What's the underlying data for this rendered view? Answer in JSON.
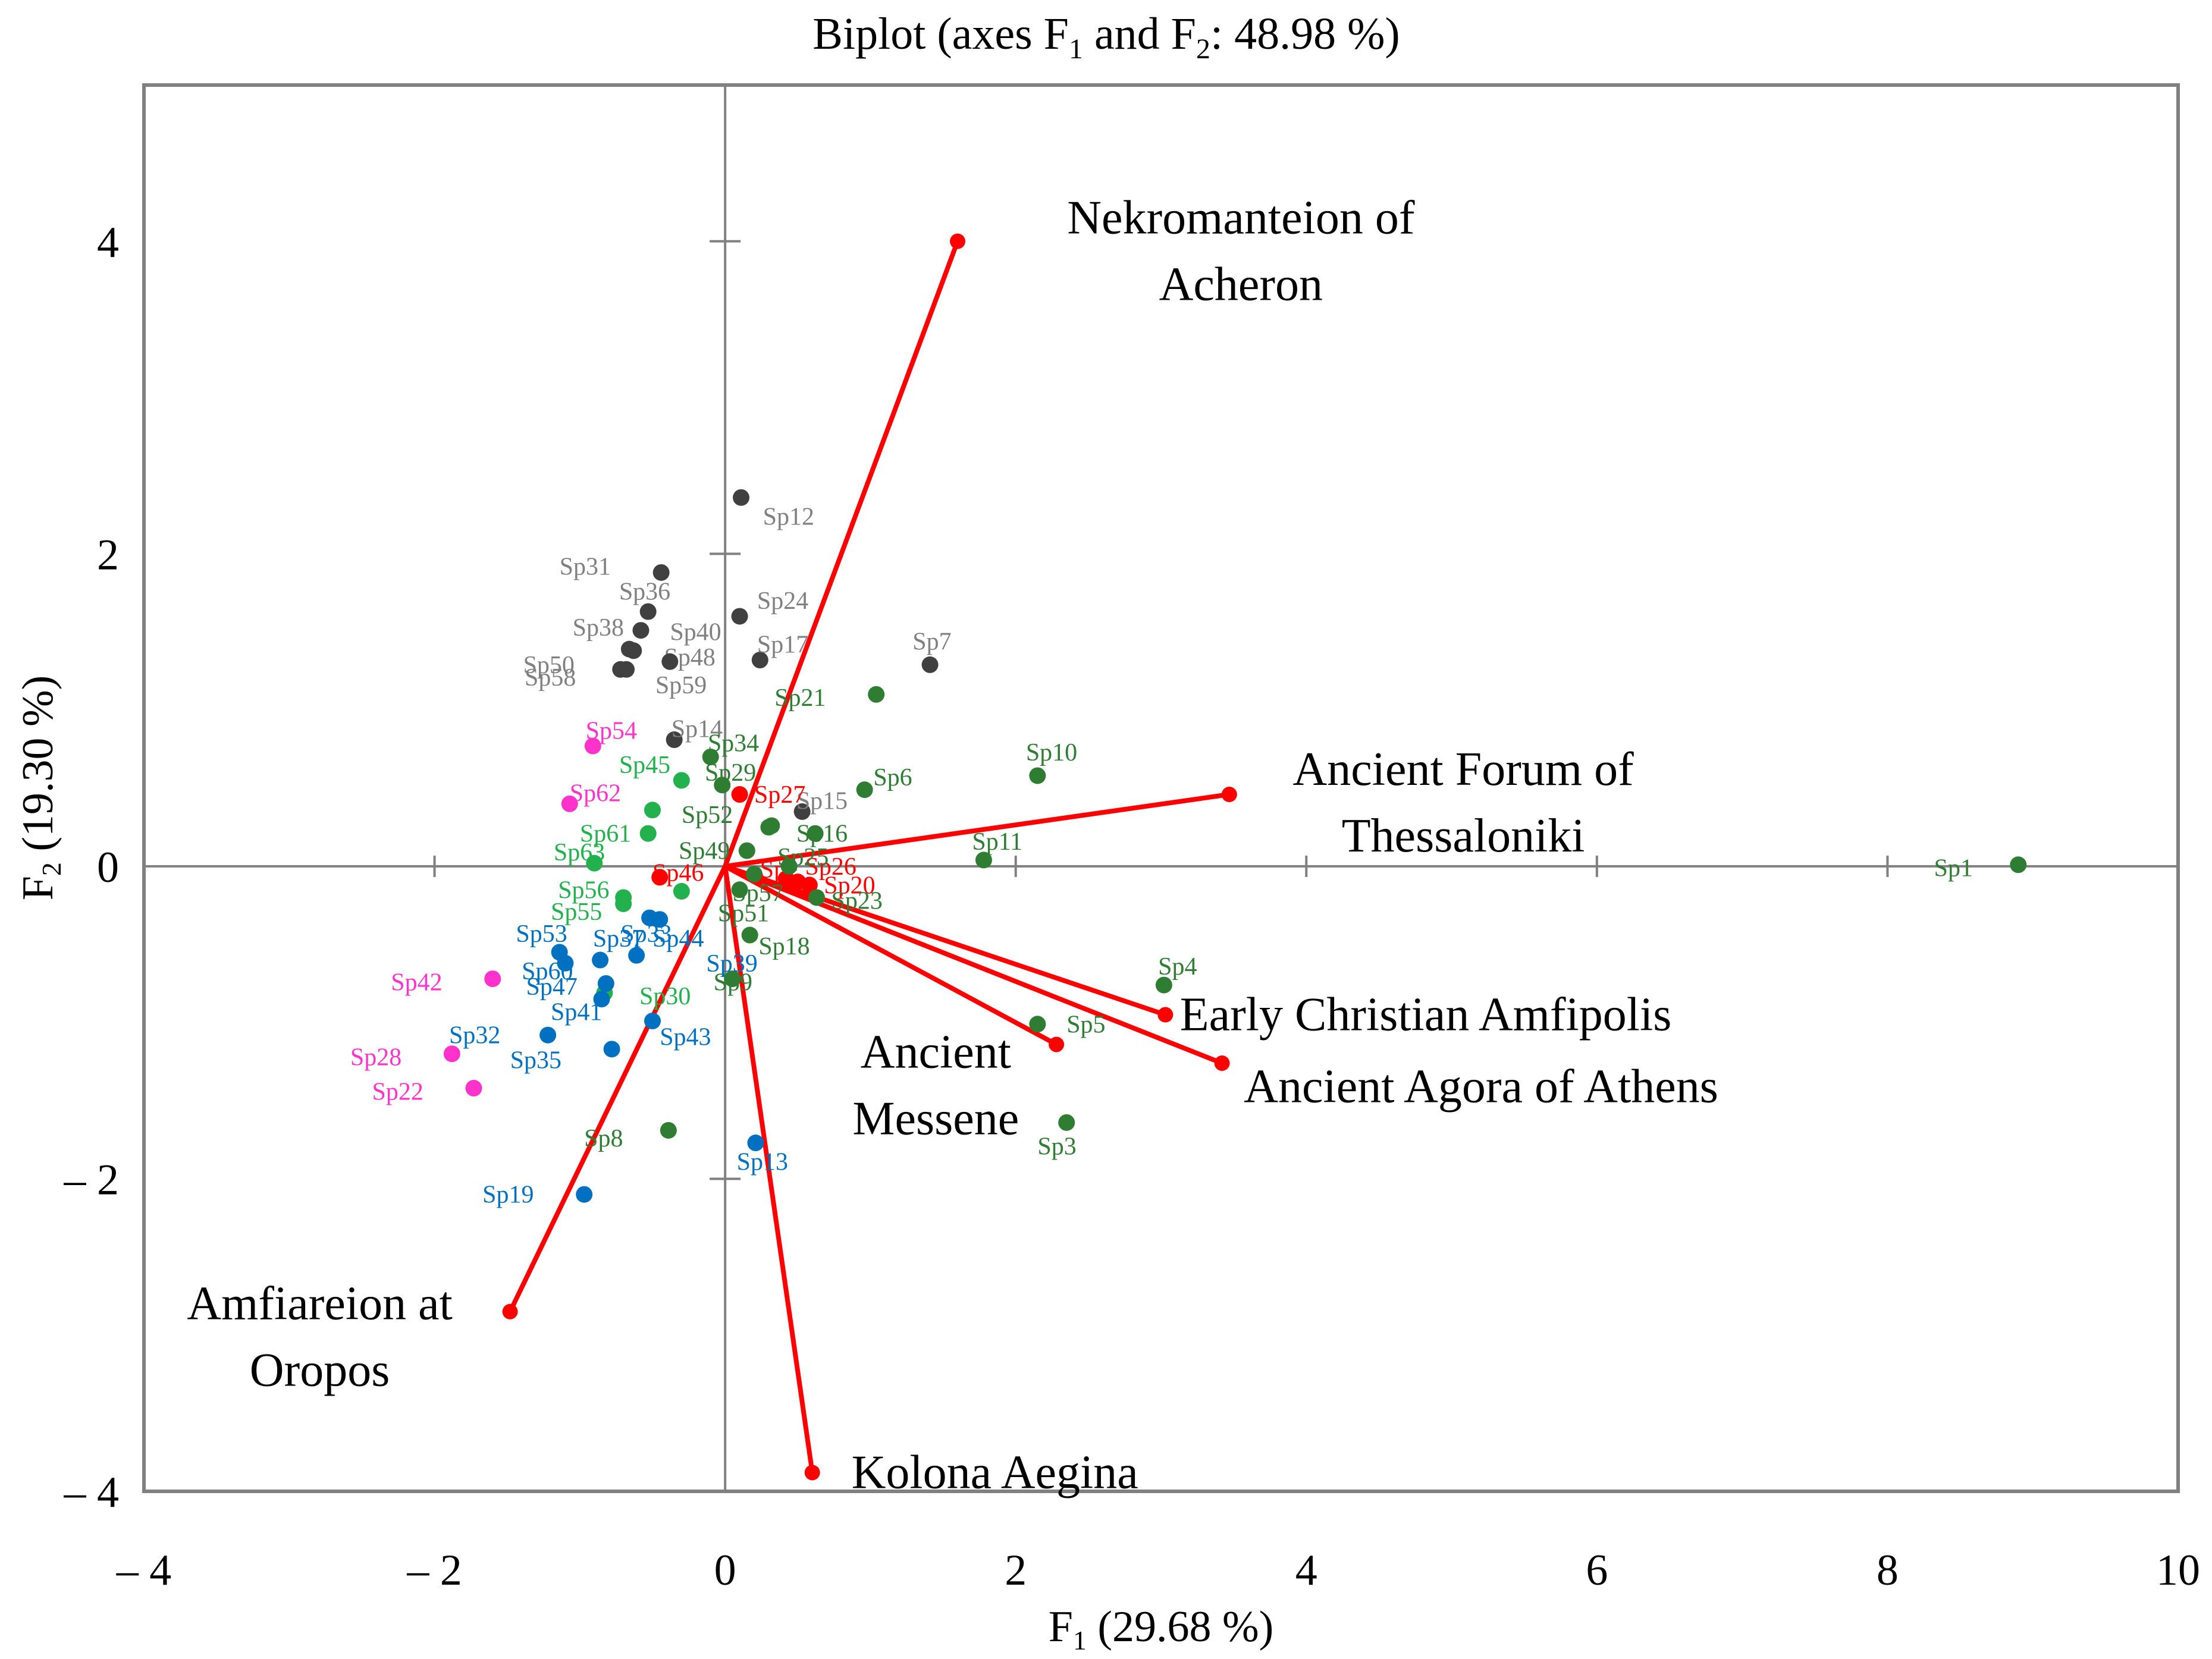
{
  "chart_data": {
    "type": "scatter",
    "title": {
      "pre": "Biplot (axes F",
      "s1": "1",
      "mid": " and F",
      "s2": "2",
      "post": ": 48.98 %)"
    },
    "xlabel": {
      "main": "F",
      "sub": "1",
      "rest": " (29.68 %)"
    },
    "ylabel": {
      "main": "F",
      "sub": "2",
      "rest": " (19.30 %)"
    },
    "xlim": [
      -4,
      10
    ],
    "ylim": [
      -4,
      5
    ],
    "xticks": [
      {
        "v": -4,
        "label": "– 4"
      },
      {
        "v": -2,
        "label": "– 2"
      },
      {
        "v": 0,
        "label": "0"
      },
      {
        "v": 2,
        "label": "2"
      },
      {
        "v": 4,
        "label": "4"
      },
      {
        "v": 6,
        "label": "6"
      },
      {
        "v": 8,
        "label": "8"
      },
      {
        "v": 10,
        "label": "10"
      }
    ],
    "yticks": [
      {
        "v": -4,
        "label": "– 4"
      },
      {
        "v": -2,
        "label": "– 2"
      },
      {
        "v": 0,
        "label": "0"
      },
      {
        "v": 2,
        "label": "2"
      },
      {
        "v": 4,
        "label": "4"
      }
    ],
    "colors": {
      "gray_point": "#404040",
      "gray_label": "#808080",
      "green_point": "#2e7d32",
      "green_label": "#2e7d32",
      "light_green_point": "#22b14c",
      "light_green_label": "#22b14c",
      "magenta": "#ff33cc",
      "blue": "#0070c0",
      "red": "#ff0000"
    },
    "points": [
      {
        "label": "Sp1",
        "x": 8.9,
        "y": 0.01,
        "group": "green_point",
        "lc": "green_label",
        "dx": -0.58,
        "dy": -0.02
      },
      {
        "label": "Sp3",
        "x": 2.35,
        "y": -1.64,
        "group": "green_point",
        "lc": "green_label",
        "dx": -0.2,
        "dy": -0.15
      },
      {
        "label": "Sp4",
        "x": 3.02,
        "y": -0.76,
        "group": "green_point",
        "lc": "green_label",
        "dx": -0.04,
        "dy": 0.12
      },
      {
        "label": "Sp5",
        "x": 2.15,
        "y": -1.01,
        "group": "green_point",
        "lc": "green_label",
        "dx": 0.2,
        "dy": 0.0
      },
      {
        "label": "Sp6",
        "x": 0.96,
        "y": 0.49,
        "group": "green_point",
        "lc": "green_label",
        "dx": 0.06,
        "dy": 0.08
      },
      {
        "label": "Sp7",
        "x": 1.41,
        "y": 1.29,
        "group": "gray_point",
        "lc": "gray_label",
        "dx": -0.12,
        "dy": 0.15
      },
      {
        "label": "Sp8",
        "x": -0.39,
        "y": -1.69,
        "group": "green_point",
        "lc": "green_label",
        "dx": -0.58,
        "dy": -0.05
      },
      {
        "label": "Sp9",
        "x": 0.05,
        "y": -0.72,
        "group": "green_point",
        "lc": "green_label",
        "dx": -0.13,
        "dy": -0.02
      },
      {
        "label": "Sp10",
        "x": 2.15,
        "y": 0.58,
        "group": "green_point",
        "lc": "green_label",
        "dx": -0.08,
        "dy": 0.15
      },
      {
        "label": "Sp11",
        "x": 1.78,
        "y": 0.04,
        "group": "green_point",
        "lc": "green_label",
        "dx": -0.08,
        "dy": 0.12
      },
      {
        "label": "Sp12",
        "x": 0.11,
        "y": 2.36,
        "group": "gray_point",
        "lc": "gray_label",
        "dx": 0.15,
        "dy": -0.12
      },
      {
        "label": "Sp13",
        "x": 0.21,
        "y": -1.77,
        "group": "blue",
        "lc": "blue",
        "dx": -0.13,
        "dy": -0.12
      },
      {
        "label": "Sp14",
        "x": -0.35,
        "y": 0.81,
        "group": "gray_point",
        "lc": "gray_label",
        "dx": -0.02,
        "dy": 0.07
      },
      {
        "label": "Sp15",
        "x": 0.53,
        "y": 0.35,
        "group": "gray_point",
        "lc": "gray_label",
        "dx": -0.04,
        "dy": 0.07
      },
      {
        "label": "Sp16",
        "x": 0.62,
        "y": 0.21,
        "group": "green_point",
        "lc": "green_label",
        "dx": -0.13,
        "dy": 0.0
      },
      {
        "label": "Sp17",
        "x": 0.24,
        "y": 1.32,
        "group": "gray_point",
        "lc": "gray_label",
        "dx": -0.02,
        "dy": 0.1
      },
      {
        "label": "Sp18",
        "x": 0.17,
        "y": -0.44,
        "group": "green_point",
        "lc": "green_label",
        "dx": 0.06,
        "dy": -0.07
      },
      {
        "label": "Sp19",
        "x": -0.97,
        "y": -2.1,
        "group": "blue",
        "lc": "blue",
        "dx": -0.7,
        "dy": 0.0
      },
      {
        "label": "Sp20",
        "x": 0.58,
        "y": -0.12,
        "group": "red",
        "lc": "red",
        "dx": 0.1,
        "dy": 0.0
      },
      {
        "label": "Sp21",
        "x": 1.04,
        "y": 1.1,
        "group": "green_point",
        "lc": "green_label",
        "dx": -0.7,
        "dy": -0.02
      },
      {
        "label": "Sp22",
        "x": -1.73,
        "y": -1.42,
        "group": "magenta",
        "lc": "magenta",
        "dx": -0.7,
        "dy": -0.02
      },
      {
        "label": "Sp23",
        "x": 0.63,
        "y": -0.2,
        "group": "green_point",
        "lc": "green_label",
        "dx": 0.1,
        "dy": -0.02
      },
      {
        "label": "Sp24",
        "x": 0.1,
        "y": 1.6,
        "group": "gray_point",
        "lc": "gray_label",
        "dx": 0.12,
        "dy": 0.1
      },
      {
        "label": "Sp26",
        "x": 0.5,
        "y": -0.1,
        "group": "red",
        "lc": "red",
        "dx": 0.05,
        "dy": 0.1
      },
      {
        "label": "Sp27",
        "x": 0.1,
        "y": 0.46,
        "group": "red",
        "lc": "red",
        "dx": 0.1,
        "dy": 0.0
      },
      {
        "label": "Sp28",
        "x": -1.88,
        "y": -1.2,
        "group": "magenta",
        "lc": "magenta",
        "dx": -0.7,
        "dy": -0.02
      },
      {
        "label": "Sp29",
        "x": -0.02,
        "y": 0.52,
        "group": "green_point",
        "lc": "green_label",
        "dx": -0.12,
        "dy": 0.08
      },
      {
        "label": "Sp30",
        "x": -0.83,
        "y": -0.81,
        "group": "light_green_point",
        "lc": "light_green_label",
        "dx": 0.24,
        "dy": -0.02
      },
      {
        "label": "Sp31",
        "x": -0.44,
        "y": 1.88,
        "group": "gray_point",
        "lc": "gray_label",
        "dx": -0.7,
        "dy": 0.04
      },
      {
        "label": "Sp32",
        "x": -1.22,
        "y": -1.08,
        "group": "blue",
        "lc": "blue",
        "dx": -0.68,
        "dy": 0.0
      },
      {
        "label": "Sp34",
        "x": -0.1,
        "y": 0.7,
        "group": "green_point",
        "lc": "green_label",
        "dx": -0.02,
        "dy": 0.09
      },
      {
        "label": "Sp35",
        "x": -0.78,
        "y": -1.17,
        "group": "blue",
        "lc": "blue",
        "dx": -0.7,
        "dy": -0.07
      },
      {
        "label": "Sp36",
        "x": -0.53,
        "y": 1.63,
        "group": "gray_point",
        "lc": "gray_label",
        "dx": -0.2,
        "dy": 0.13
      },
      {
        "label": "Sp37",
        "x": -0.86,
        "y": -0.6,
        "group": "blue",
        "lc": "blue",
        "dx": -0.05,
        "dy": 0.14
      },
      {
        "label": "Sp38",
        "x": -0.58,
        "y": 1.51,
        "group": "gray_point",
        "lc": "gray_label",
        "dx": -0.47,
        "dy": 0.02
      },
      {
        "label": "Sp39",
        "x": -0.61,
        "y": -0.57,
        "group": "blue",
        "lc": "blue",
        "dx": 0.48,
        "dy": -0.05
      },
      {
        "label": "Sp40",
        "x": -0.63,
        "y": 1.38,
        "group": "gray_point",
        "lc": "gray_label",
        "dx": 0.25,
        "dy": 0.12
      },
      {
        "label": "Sp41",
        "x": -0.85,
        "y": -0.85,
        "group": "blue",
        "lc": "blue",
        "dx": -0.35,
        "dy": -0.08
      },
      {
        "label": "Sp42",
        "x": -1.6,
        "y": -0.72,
        "group": "magenta",
        "lc": "magenta",
        "dx": -0.7,
        "dy": -0.02
      },
      {
        "label": "Sp43",
        "x": -0.5,
        "y": -0.99,
        "group": "blue",
        "lc": "blue",
        "dx": 0.05,
        "dy": -0.1
      },
      {
        "label": "Sp44",
        "x": -0.45,
        "y": -0.34,
        "group": "blue",
        "lc": "blue",
        "dx": -0.05,
        "dy": -0.12
      },
      {
        "label": "Sp45",
        "x": -0.3,
        "y": 0.55,
        "group": "light_green_point",
        "lc": "light_green_label",
        "dx": -0.43,
        "dy": 0.1
      },
      {
        "label": "Sp46",
        "x": -0.45,
        "y": -0.07,
        "group": "red",
        "lc": "red",
        "dx": -0.05,
        "dy": 0.03
      },
      {
        "label": "Sp47",
        "x": -0.82,
        "y": -0.75,
        "group": "blue",
        "lc": "blue",
        "dx": -0.55,
        "dy": -0.02
      },
      {
        "label": "Sp48",
        "x": -0.72,
        "y": 1.26,
        "group": "gray_point",
        "lc": "gray_label",
        "dx": 0.3,
        "dy": 0.08
      },
      {
        "label": "Sp49",
        "x": 0.15,
        "y": 0.1,
        "group": "green_point",
        "lc": "green_label",
        "dx": -0.47,
        "dy": 0.0
      },
      {
        "label": "Sp50",
        "x": -0.66,
        "y": 1.39,
        "group": "gray_point",
        "lc": "gray_label",
        "dx": -0.73,
        "dy": -0.1
      },
      {
        "label": "Sp51",
        "x": 0.1,
        "y": -0.15,
        "group": "green_point",
        "lc": "green_label",
        "dx": -0.15,
        "dy": -0.15
      },
      {
        "label": "Sp52",
        "x": 0.3,
        "y": 0.25,
        "group": "green_point",
        "lc": "green_label",
        "dx": -0.6,
        "dy": 0.08
      },
      {
        "label": "Sp53",
        "x": -1.14,
        "y": -0.55,
        "group": "blue",
        "lc": "blue",
        "dx": -0.3,
        "dy": 0.12
      },
      {
        "label": "Sp54",
        "x": -0.91,
        "y": 0.77,
        "group": "magenta",
        "lc": "magenta",
        "dx": -0.05,
        "dy": 0.1
      },
      {
        "label": "Sp55",
        "x": -0.7,
        "y": -0.24,
        "group": "light_green_point",
        "lc": "light_green_label",
        "dx": -0.5,
        "dy": -0.05
      },
      {
        "label": "Sp56",
        "x": -0.7,
        "y": -0.2,
        "group": "light_green_point",
        "lc": "light_green_label",
        "dx": -0.45,
        "dy": 0.05
      },
      {
        "label": "Sp57",
        "x": 0.2,
        "y": -0.05,
        "group": "green_point",
        "lc": "green_label",
        "dx": -0.15,
        "dy": -0.12
      },
      {
        "label": "Sp58",
        "x": -0.68,
        "y": 1.26,
        "group": "gray_point",
        "lc": "gray_label",
        "dx": -0.7,
        "dy": -0.05
      },
      {
        "label": "Sp59",
        "x": -0.38,
        "y": 1.31,
        "group": "gray_point",
        "lc": "gray_label",
        "dx": -0.1,
        "dy": -0.15
      },
      {
        "label": "Sp60",
        "x": -1.1,
        "y": -0.62,
        "group": "blue",
        "lc": "blue",
        "dx": -0.3,
        "dy": -0.05
      },
      {
        "label": "Sp61",
        "x": -0.53,
        "y": 0.21,
        "group": "light_green_point",
        "lc": "light_green_label",
        "dx": -0.47,
        "dy": 0.0
      },
      {
        "label": "Sp62",
        "x": -1.07,
        "y": 0.4,
        "group": "magenta",
        "lc": "magenta",
        "dx": 0.0,
        "dy": 0.07
      },
      {
        "label": "Sp63",
        "x": -0.9,
        "y": 0.02,
        "group": "light_green_point",
        "lc": "light_green_label",
        "dx": -0.28,
        "dy": 0.07
      },
      {
        "label": "Sp2",
        "x": 0.42,
        "y": -0.08,
        "group": "red",
        "lc": "red",
        "dx": -0.18,
        "dy": 0.06
      },
      {
        "label": "Sp25",
        "x": 0.44,
        "y": 0.0,
        "group": "green_point",
        "lc": "green_label",
        "dx": -0.08,
        "dy": 0.06
      },
      {
        "label": "Sp33",
        "x": -0.52,
        "y": -0.33,
        "group": "blue",
        "lc": "blue",
        "dx": -0.2,
        "dy": -0.1
      },
      {
        "label": "Sp44b",
        "x": -0.3,
        "y": -0.16,
        "group": "light_green_point",
        "lc": "light_green_label",
        "dx": 0.0,
        "dy": 0.0,
        "hide_label": true
      },
      {
        "label": "Sp45b",
        "x": -0.5,
        "y": 0.36,
        "group": "light_green_point",
        "lc": "light_green_label",
        "dx": 0.0,
        "dy": 0.0,
        "hide_label": true
      },
      {
        "label": "Sp29b",
        "x": 0.32,
        "y": 0.26,
        "group": "green_point",
        "lc": "green_label",
        "dx": 0.0,
        "dy": 0.0,
        "hide_label": true
      }
    ],
    "vectors": [
      {
        "name": "Nekromanteion of Acheron",
        "lines": [
          "Nekromanteion of",
          "Acheron"
        ],
        "x": 1.6,
        "y": 4.0,
        "lx": 3.55,
        "ly": 4.15,
        "anchor": "middle"
      },
      {
        "name": "Ancient Forum of Thessaloniki",
        "lines": [
          "Ancient Forum of",
          "Thessaloniki"
        ],
        "x": 3.47,
        "y": 0.46,
        "lx": 5.08,
        "ly": 0.62,
        "anchor": "middle"
      },
      {
        "name": "Early Christian Amfipolis",
        "lines": [
          "Early Christian Amfipolis"
        ],
        "x": 3.03,
        "y": -0.95,
        "lx": 3.13,
        "ly": -0.95,
        "anchor": "start"
      },
      {
        "name": "Ancient Agora of Athens",
        "lines": [
          "Ancient Agora of Athens"
        ],
        "x": 3.42,
        "y": -1.26,
        "lx": 3.57,
        "ly": -1.41,
        "anchor": "start"
      },
      {
        "name": "Ancient Messene",
        "lines": [
          "Ancient",
          "Messene"
        ],
        "x": 2.28,
        "y": -1.14,
        "lx": 1.45,
        "ly": -1.19,
        "anchor": "middle"
      },
      {
        "name": "Kolona Aegina",
        "lines": [
          "Kolona Aegina"
        ],
        "x": 0.6,
        "y": -3.88,
        "lx": 0.87,
        "ly": -3.88,
        "anchor": "start"
      },
      {
        "name": "Amfiareion at Oropos",
        "lines": [
          "Amfiareion at",
          "Oropos"
        ],
        "x": -1.48,
        "y": -2.85,
        "lx": -2.79,
        "ly": -2.8,
        "anchor": "middle"
      }
    ]
  }
}
